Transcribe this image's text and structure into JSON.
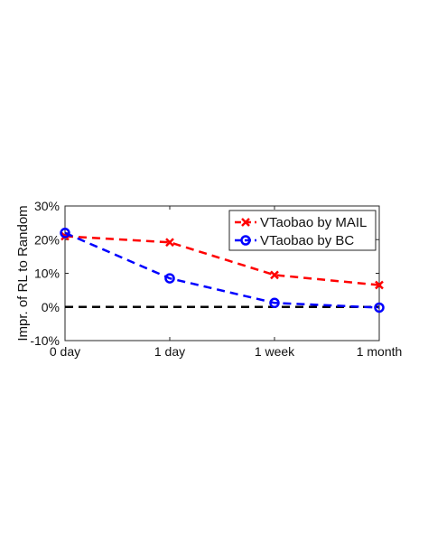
{
  "chart_data": {
    "type": "line",
    "title": "",
    "xlabel": "",
    "ylabel": "Impr. of RL to Random",
    "categories": [
      "0 day",
      "1 day",
      "1 week",
      "1 month"
    ],
    "ylim": [
      -10,
      30
    ],
    "yticks": [
      -10,
      0,
      10,
      20,
      30
    ],
    "ytick_labels": [
      "-10%",
      "0%",
      "10%",
      "20%",
      "30%"
    ],
    "grid": false,
    "legend_position": "top-right",
    "series": [
      {
        "name": "VTaobao by MAIL",
        "values": [
          21,
          19.2,
          9.5,
          6.5
        ],
        "color": "#ff0000",
        "marker": "x",
        "line_style": "dashed"
      },
      {
        "name": "VTaobao by BC",
        "values": [
          22,
          8.5,
          1.2,
          -0.2
        ],
        "color": "#0000ff",
        "marker": "circle",
        "line_style": "dashed"
      }
    ],
    "reference_lines": [
      {
        "y": 0,
        "color": "#000000",
        "line_style": "dashed"
      }
    ]
  }
}
